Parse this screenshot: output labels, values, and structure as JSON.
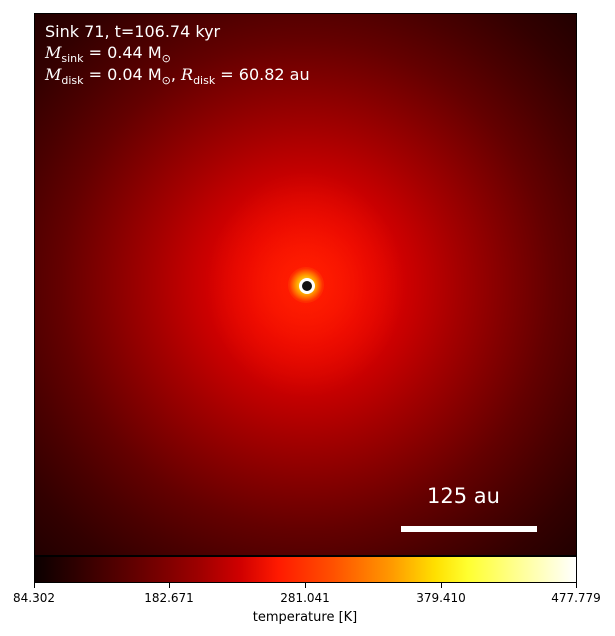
{
  "annotation": {
    "line1": "Sink 71, t=106.74 kyr",
    "msink_symbol": "M",
    "msink_sub": "sink",
    "msink_value": " = 0.44 M",
    "msink_unit_sub": "⊙",
    "mdisk_symbol": "M",
    "mdisk_sub": "disk",
    "mdisk_value": " = 0.04 M",
    "mdisk_unit_sub": "⊙",
    "rdisk_sep": ", ",
    "rdisk_symbol": "R",
    "rdisk_sub": "disk",
    "rdisk_value": " = 60.82 au"
  },
  "scalebar": {
    "label": "125 au"
  },
  "colorbar": {
    "ticks": [
      "84.302",
      "182.671",
      "281.041",
      "379.410",
      "477.779"
    ],
    "label": "temperature [K]",
    "colormap": "hot",
    "colors": [
      "#0b0000",
      "#ff1a00",
      "#ffe000",
      "#ffffff"
    ]
  }
}
